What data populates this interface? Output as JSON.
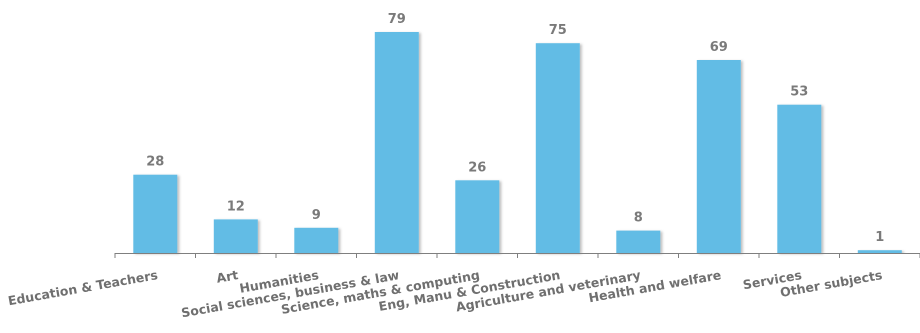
{
  "chart_data": {
    "type": "bar",
    "categories": [
      "Education & Teachers",
      "Art",
      "Humanities",
      "Social sciences, business & law",
      "Science, maths & computing",
      "Eng, Manu & Construction",
      "Agriculture and veterinary",
      "Health and welfare",
      "Services",
      "Other subjects"
    ],
    "values": [
      28,
      12,
      9,
      79,
      26,
      75,
      8,
      69,
      53,
      1
    ],
    "ylim": [
      0,
      80
    ],
    "grid": false,
    "data_labels": true,
    "bar_color": "#62bce5",
    "label_color": "#7a7a7a",
    "axis_color": "#7f7f7f"
  }
}
